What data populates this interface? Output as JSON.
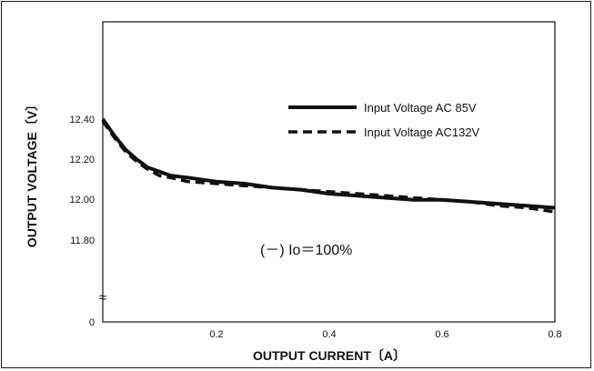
{
  "chart_data": {
    "type": "line",
    "xlabel": "OUTPUT CURRENT〔A〕",
    "ylabel": "OUTPUT VOLTAGE〔V〕",
    "xlim": [
      0,
      0.8
    ],
    "ylim": [
      11.6,
      12.85
    ],
    "x_ticks": [
      "0.2",
      "0.4",
      "0.6",
      "0.8"
    ],
    "y_ticks": [
      "12.40",
      "12.20",
      "12.00",
      "11.80",
      "0"
    ],
    "axis_break": "≈",
    "grid": false,
    "legend_position": "top-right",
    "annotation": "(－) Io＝100%",
    "series": [
      {
        "name": "Input Voltage  AC 85V",
        "style": "solid",
        "color": "#111111",
        "x": [
          0.0,
          0.02,
          0.04,
          0.06,
          0.08,
          0.1,
          0.12,
          0.15,
          0.2,
          0.25,
          0.3,
          0.35,
          0.4,
          0.45,
          0.5,
          0.55,
          0.6,
          0.65,
          0.7,
          0.75,
          0.8
        ],
        "y": [
          12.4,
          12.32,
          12.25,
          12.2,
          12.16,
          12.14,
          12.12,
          12.11,
          12.09,
          12.08,
          12.06,
          12.05,
          12.03,
          12.02,
          12.01,
          12.0,
          12.0,
          11.99,
          11.98,
          11.97,
          11.96
        ]
      },
      {
        "name": "Input Voltage AC132V",
        "style": "dashed",
        "color": "#111111",
        "x": [
          0.0,
          0.02,
          0.04,
          0.06,
          0.08,
          0.1,
          0.12,
          0.15,
          0.2,
          0.25,
          0.3,
          0.35,
          0.4,
          0.45,
          0.5,
          0.55,
          0.6,
          0.65,
          0.7,
          0.75,
          0.8
        ],
        "y": [
          12.39,
          12.31,
          12.24,
          12.19,
          12.15,
          12.12,
          12.11,
          12.09,
          12.08,
          12.07,
          12.06,
          12.05,
          12.04,
          12.03,
          12.02,
          12.01,
          12.0,
          11.99,
          11.97,
          11.96,
          11.94
        ]
      }
    ]
  }
}
